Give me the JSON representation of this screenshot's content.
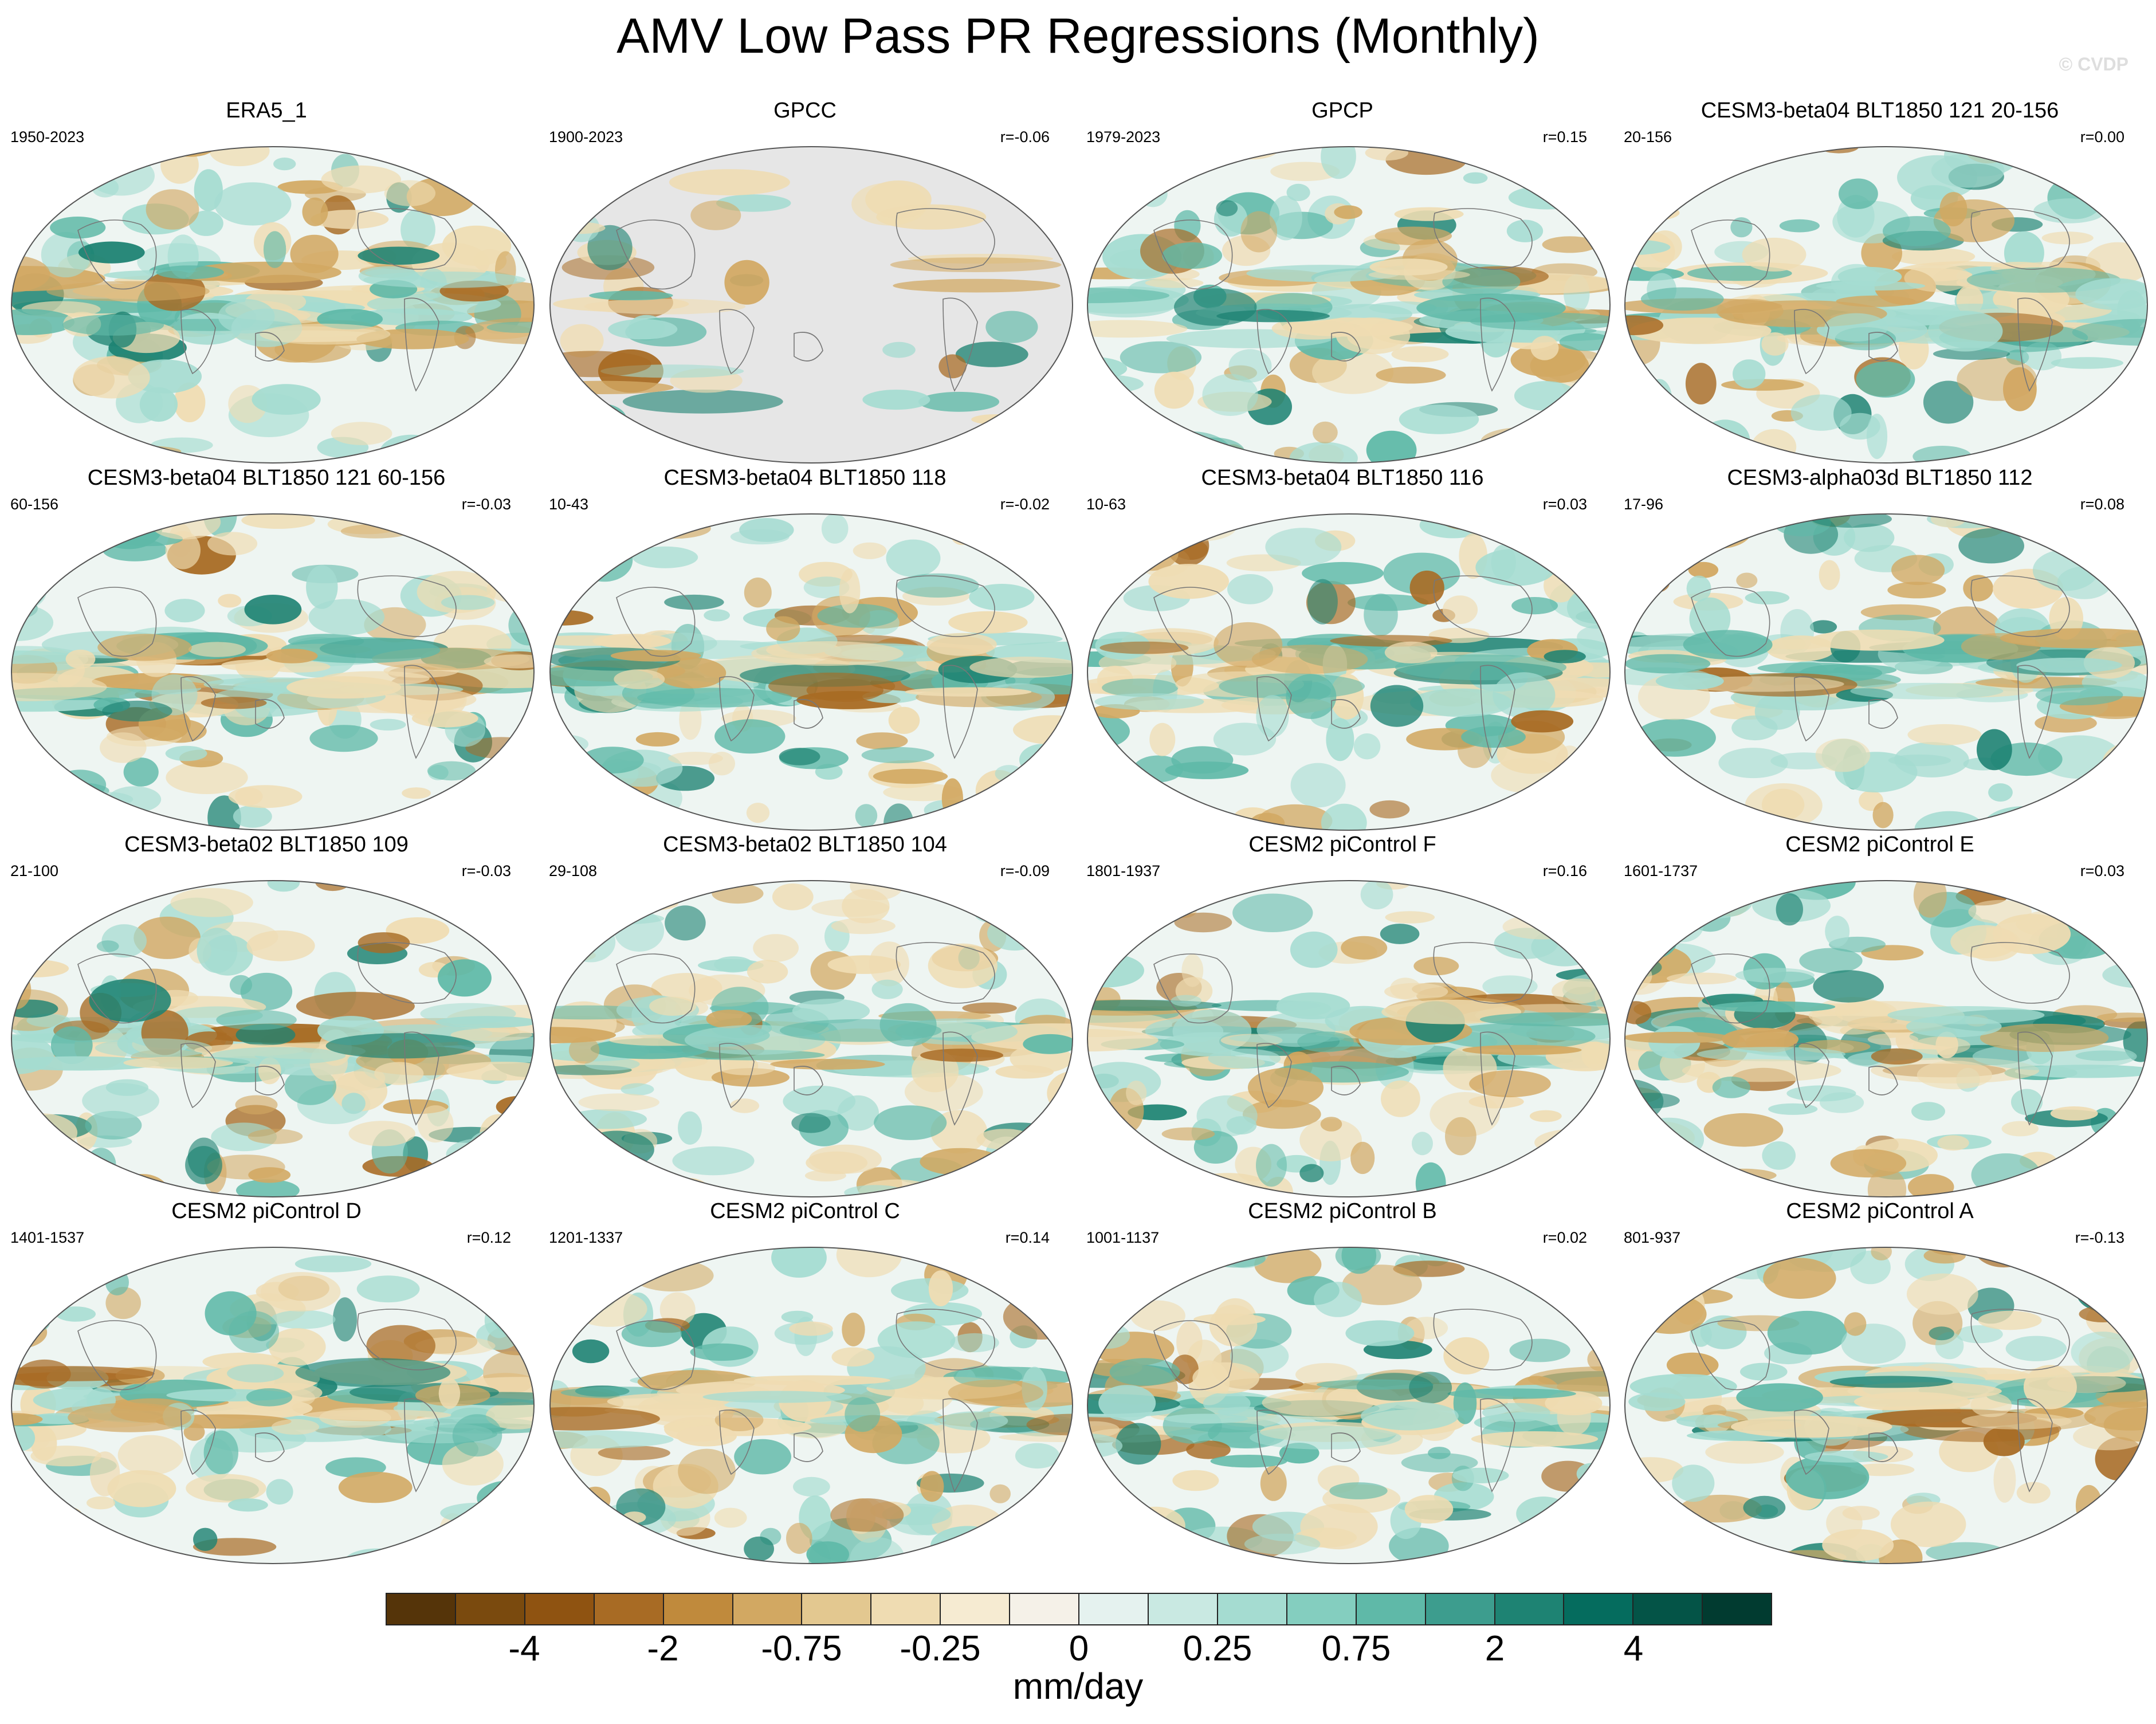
{
  "title": "AMV Low Pass PR Regressions (Monthly)",
  "watermark": "© CVDP",
  "panels": [
    {
      "name": "ERA5_1",
      "period": "1950-2023",
      "corr": "",
      "variant": "full"
    },
    {
      "name": "GPCC",
      "period": "1900-2023",
      "corr": "r=-0.06",
      "variant": "land"
    },
    {
      "name": "GPCP",
      "period": "1979-2023",
      "corr": "r=0.15",
      "variant": "full"
    },
    {
      "name": "CESM3-beta04 BLT1850 121 20-156",
      "period": "20-156",
      "corr": "r=0.00",
      "variant": "full"
    },
    {
      "name": "CESM3-beta04 BLT1850 121 60-156",
      "period": "60-156",
      "corr": "r=-0.03",
      "variant": "full"
    },
    {
      "name": "CESM3-beta04 BLT1850 118",
      "period": "10-43",
      "corr": "r=-0.02",
      "variant": "full"
    },
    {
      "name": "CESM3-beta04 BLT1850 116",
      "period": "10-63",
      "corr": "r=0.03",
      "variant": "full"
    },
    {
      "name": "CESM3-alpha03d BLT1850 112",
      "period": "17-96",
      "corr": "r=0.08",
      "variant": "full"
    },
    {
      "name": "CESM3-beta02 BLT1850 109",
      "period": "21-100",
      "corr": "r=-0.03",
      "variant": "full"
    },
    {
      "name": "CESM3-beta02 BLT1850 104",
      "period": "29-108",
      "corr": "r=-0.09",
      "variant": "full"
    },
    {
      "name": "CESM2 piControl F",
      "period": "1801-1937",
      "corr": "r=0.16",
      "variant": "full"
    },
    {
      "name": "CESM2 piControl E",
      "period": "1601-1737",
      "corr": "r=0.03",
      "variant": "full"
    },
    {
      "name": "CESM2 piControl D",
      "period": "1401-1537",
      "corr": "r=0.12",
      "variant": "full"
    },
    {
      "name": "CESM2 piControl C",
      "period": "1201-1337",
      "corr": "r=0.14",
      "variant": "full"
    },
    {
      "name": "CESM2 piControl B",
      "period": "1001-1137",
      "corr": "r=0.02",
      "variant": "full"
    },
    {
      "name": "CESM2 piControl A",
      "period": "801-937",
      "corr": "r=-0.13",
      "variant": "full"
    }
  ],
  "colorbar": {
    "colors": [
      "#553409",
      "#7a4a0e",
      "#8f5311",
      "#a86b24",
      "#c08a3c",
      "#d2a862",
      "#e3c890",
      "#efdcb2",
      "#f6ebd2",
      "#f5f1e8",
      "#e5f2ef",
      "#c9e9e2",
      "#a5dcd1",
      "#84cebf",
      "#5fb9a8",
      "#3d9d8e",
      "#1e8373",
      "#056c5e",
      "#045447",
      "#013b30"
    ],
    "tick_labels": [
      "-4",
      "-2",
      "-0.75",
      "-0.25",
      "0",
      "0.25",
      "0.75",
      "2",
      "4"
    ],
    "units": "mm/day"
  }
}
